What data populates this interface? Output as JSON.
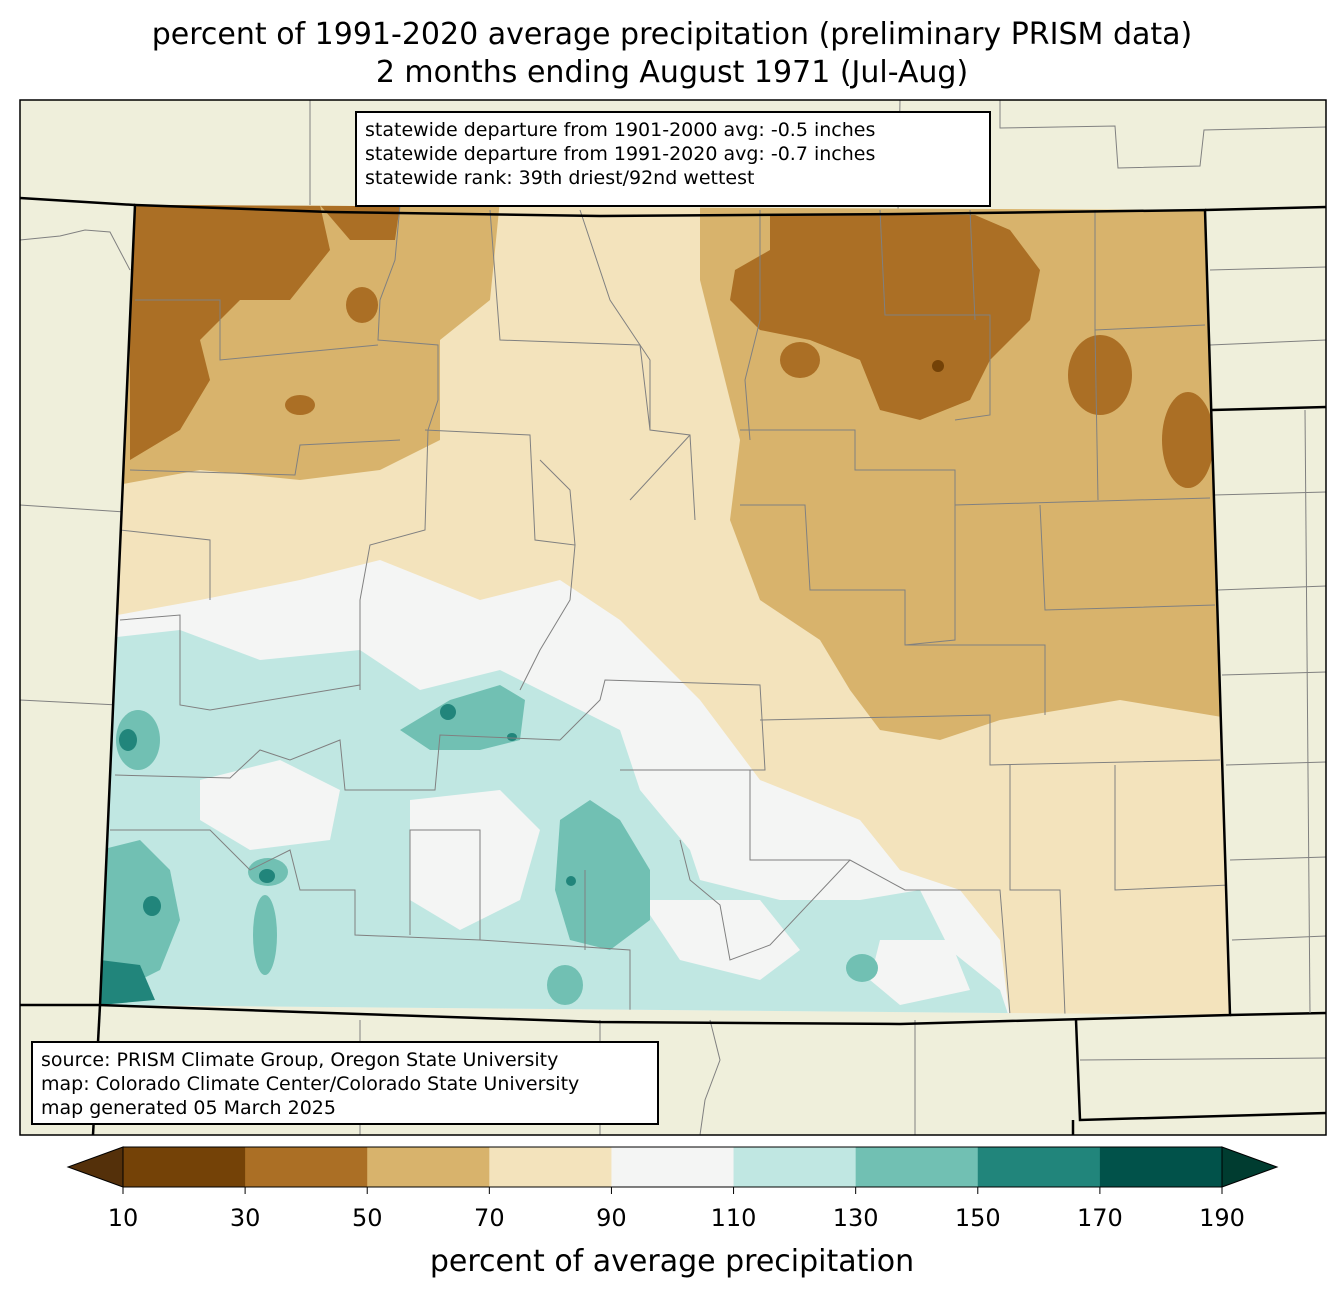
{
  "title": {
    "line1": "percent of 1991-2020 average precipitation (preliminary PRISM data)",
    "line2": "2 months ending August 1971 (Jul-Aug)"
  },
  "stats": {
    "line1": "statewide departure from 1901-2000 avg: -0.5 inches",
    "line2": "statewide departure from 1991-2020 avg: -0.7 inches",
    "line3": "statewide rank: 39th driest/92nd wettest"
  },
  "source": {
    "line1": "source: PRISM Climate Group, Oregon State University",
    "line2": "map: Colorado Climate Center/Colorado State University",
    "line3": "map generated 05 March 2025"
  },
  "colorbar": {
    "label": "percent of average precipitation",
    "ticks": [
      "10",
      "30",
      "50",
      "70",
      "90",
      "110",
      "130",
      "150",
      "170",
      "190"
    ],
    "colors": [
      "#54300a",
      "#744207",
      "#ab6f25",
      "#d8b36c",
      "#f3e3bc",
      "#f4f5f4",
      "#c0e7e2",
      "#71c0b3",
      "#21857b",
      "#01524a",
      "#003c30"
    ]
  },
  "map_colors": {
    "land_outside": "#efefdb",
    "state_border": "#000000",
    "county_border": "#808080"
  }
}
